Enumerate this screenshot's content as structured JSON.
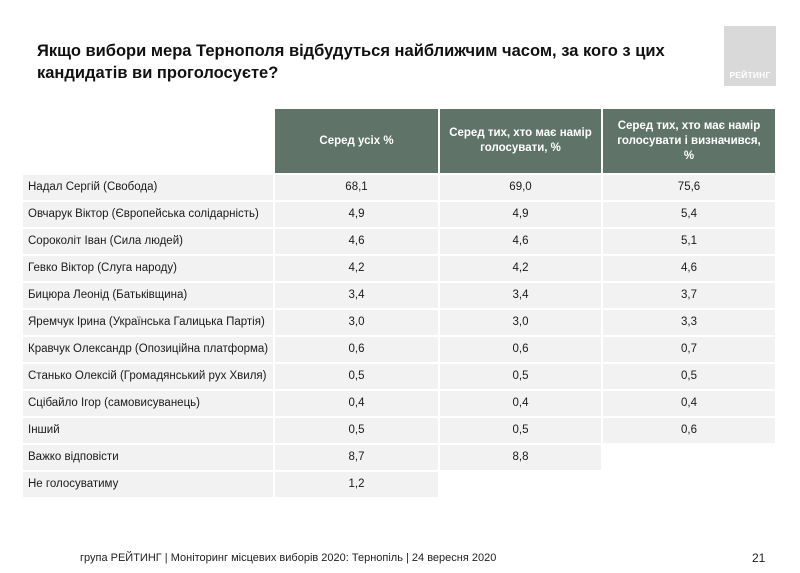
{
  "title": "Якщо вибори мера Тернополя відбудуться найближчим часом, за кого з цих кандидатів ви проголосуєте?",
  "logo_text": "РЕЙТИНГ",
  "headers": [
    "Серед усіх %",
    "Серед тих, хто має намір голосувати, %",
    "Серед тих, хто має намір голосувати і визначився, %"
  ],
  "rows": [
    {
      "name": "Надал Сергій (Свобода)",
      "v1": "68,1",
      "v2": "69,0",
      "v3": "75,6"
    },
    {
      "name": "Овчарук Віктор (Європейська солідарність)",
      "v1": "4,9",
      "v2": "4,9",
      "v3": "5,4"
    },
    {
      "name": "Сороколіт Іван (Сила людей)",
      "v1": "4,6",
      "v2": "4,6",
      "v3": "5,1"
    },
    {
      "name": "Гевко Віктор (Слуга народу)",
      "v1": "4,2",
      "v2": "4,2",
      "v3": "4,6"
    },
    {
      "name": "Бицюра Леонід (Батьківщина)",
      "v1": "3,4",
      "v2": "3,4",
      "v3": "3,7"
    },
    {
      "name": "Яремчук Ірина (Українська Галицька Партія)",
      "v1": "3,0",
      "v2": "3,0",
      "v3": "3,3"
    },
    {
      "name": "Кравчук Олександр (Опозиційна платформа)",
      "v1": "0,6",
      "v2": "0,6",
      "v3": "0,7"
    },
    {
      "name": "Станько Олексій (Громадянський рух Хвиля)",
      "v1": "0,5",
      "v2": "0,5",
      "v3": "0,5"
    },
    {
      "name": "Сцібайло Ігор (самовисуванець)",
      "v1": "0,4",
      "v2": "0,4",
      "v3": "0,4"
    },
    {
      "name": "Інший",
      "v1": "0,5",
      "v2": "0,5",
      "v3": "0,6"
    },
    {
      "name": "Важко відповісти",
      "v1": "8,7",
      "v2": "8,8"
    },
    {
      "name": "Не голосуватиму",
      "v1": "1,2"
    }
  ],
  "footer": "група РЕЙТИНГ  | Моніторинг місцевих виборів 2020: Тернопіль | 24 вересня 2020",
  "page_number": "21"
}
